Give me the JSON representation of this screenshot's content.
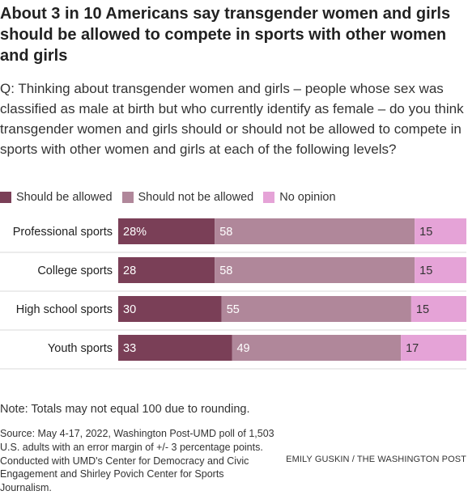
{
  "title": "About 3 in 10 Americans say transgender women and girls should be allowed to compete in sports with other women and girls",
  "question": "Q: Thinking about transgender women and girls – people whose sex was classified as male at birth but who currently identify as female – do you think transgender women and girls should or should not be allowed to compete in sports with other women and girls at each of the following levels?",
  "legend": [
    {
      "label": "Should be allowed",
      "color": "#7a3f57"
    },
    {
      "label": "Should not be allowed",
      "color": "#b0879a"
    },
    {
      "label": "No opinion",
      "color": "#e5a3d7"
    }
  ],
  "chart_data": {
    "type": "bar",
    "orientation": "horizontal",
    "stacked": true,
    "categories": [
      "Professional sports",
      "College sports",
      "High school sports",
      "Youth sports"
    ],
    "series": [
      {
        "name": "Should be allowed",
        "values": [
          28,
          28,
          30,
          33
        ],
        "color": "#7a3f57",
        "label_color": "#ffffff"
      },
      {
        "name": "Should not be allowed",
        "values": [
          58,
          58,
          55,
          49
        ],
        "color": "#b0879a",
        "label_color": "#ffffff"
      },
      {
        "name": "No opinion",
        "values": [
          15,
          15,
          15,
          17
        ],
        "color": "#e5a3d7",
        "label_color": "#333333"
      }
    ],
    "data_labels": [
      [
        "28%",
        "58",
        "15"
      ],
      [
        "28",
        "58",
        "15"
      ],
      [
        "30",
        "55",
        "15"
      ],
      [
        "33",
        "49",
        "17"
      ]
    ],
    "xlim": [
      0,
      101
    ],
    "grid": false,
    "legend_position": "top"
  },
  "note": "Note: Totals may not equal 100 due to rounding.",
  "source": "Source: May 4-17, 2022, Washington Post-UMD poll of 1,503 U.S. adults with an error margin of +/- 3 percentage points. Conducted with UMD's Center for Democracy and Civic Engagement and Shirley Povich Center for Sports Journalism.",
  "credit": "EMILY GUSKIN / THE WASHINGTON POST"
}
